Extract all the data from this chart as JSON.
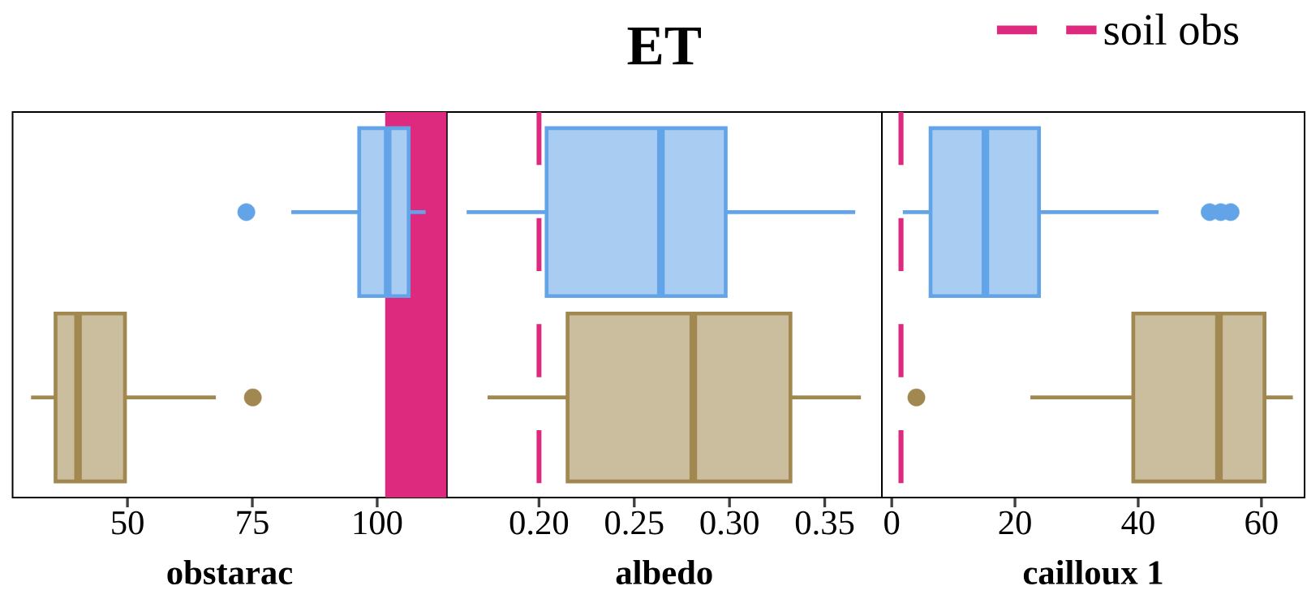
{
  "chart_data": [
    {
      "type": "box",
      "orientation": "horizontal",
      "categories": [
        null,
        null
      ],
      "colors": [
        "#63a4e8",
        "#a08850"
      ],
      "boxes": [
        {
          "low": 82.8,
          "q1": 96.4,
          "median": 102.1,
          "q3": 106.3,
          "high": 109.7,
          "outliers": [
            73.8
          ]
        },
        {
          "low": 30.7,
          "q1": 35.6,
          "median": 40.1,
          "q3": 49.5,
          "high": 67.7,
          "outliers": [
            75.1
          ]
        }
      ],
      "xlabel": "obstarac",
      "xlim": [
        27,
        113.9
      ],
      "xticks": [
        50,
        75,
        100
      ],
      "tick_labels": "x",
      "bands": [
        {
          "axis": "x",
          "from": 101.6,
          "to": 113.9,
          "color": "#dd2a7f"
        }
      ]
    },
    {
      "type": "box",
      "orientation": "horizontal",
      "title": "ET",
      "categories": [
        null,
        null
      ],
      "colors": [
        "#63a4e8",
        "#a08850"
      ],
      "boxes": [
        {
          "low": 0.162,
          "q1": 0.204,
          "median": 0.264,
          "q3": 0.298,
          "high": 0.366
        },
        {
          "low": 0.173,
          "q1": 0.215,
          "median": 0.281,
          "q3": 0.332,
          "high": 0.369
        }
      ],
      "xlabel": "albedo",
      "xlim": [
        0.1515,
        0.38
      ],
      "xticks": [
        {
          "value": 0.2,
          "label": "0.20"
        },
        0.25,
        {
          "value": 0.3,
          "label": "0.30"
        },
        0.35
      ],
      "tick_labels": "x",
      "ref_lines": [
        {
          "axis": "x",
          "value": 0.2,
          "color": "#dd2a7f",
          "line_style": "dashed"
        }
      ]
    },
    {
      "type": "box",
      "orientation": "horizontal",
      "categories": [
        null,
        null
      ],
      "colors": [
        "#63a4e8",
        "#a08850"
      ],
      "boxes": [
        {
          "low": 1.8,
          "q1": 6.3,
          "median": 15.2,
          "q3": 23.9,
          "high": 43.3,
          "outliers": [
            51.6,
            53.4,
            55.0
          ]
        },
        {
          "low": 22.5,
          "q1": 39.2,
          "median": 53.1,
          "q3": 60.5,
          "high": 65.1,
          "outliers": [
            4.0
          ]
        }
      ],
      "xlabel": "cailloux 1",
      "xlim": [
        -1.6,
        67
      ],
      "xticks": [
        0,
        20,
        40,
        60
      ],
      "tick_labels": "x",
      "legend": "top right",
      "ref_lines": [
        {
          "axis": "x",
          "value": 1.5,
          "color": "#dd2a7f",
          "line_style": "dashed",
          "label": "soil obs"
        }
      ]
    }
  ]
}
